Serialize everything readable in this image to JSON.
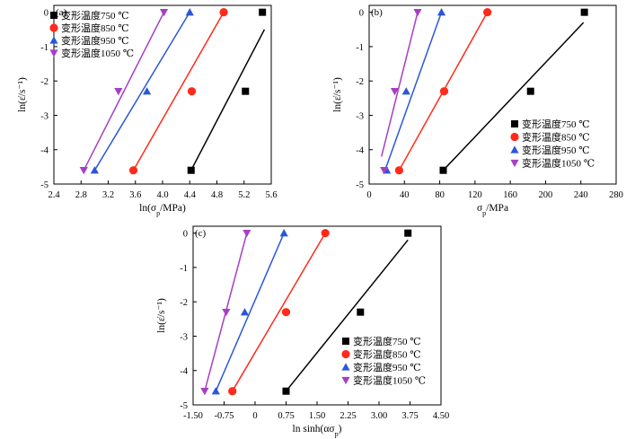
{
  "colors": {
    "750": "#000000",
    "850": "#ff2a1a",
    "950": "#2b57d8",
    "1050": "#a63fc4"
  },
  "legend_labels": [
    "变形温度750 ℃",
    "变形温度850 ℃",
    "变形温度950 ℃",
    "变形温度1050 ℃"
  ],
  "chart_data": [
    {
      "type": "scatter",
      "panel_label": "(a)",
      "xlabel": "ln(σ_p/MPa)",
      "ylabel": "ln(ε̇/s⁻¹)",
      "xlim": [
        2.4,
        5.6
      ],
      "ylim": [
        -5,
        0.2
      ],
      "xticks": [
        "2.4",
        "2.8",
        "3.2",
        "3.6",
        "4.0",
        "4.4",
        "4.8",
        "5.2",
        "5.6"
      ],
      "yticks": [
        "0",
        "-1",
        "-2",
        "-3",
        "-4",
        "-5"
      ],
      "legend_placement": "top-left",
      "series": [
        {
          "name": "变形温度750 ℃",
          "marker": "square",
          "color": "#000000",
          "points": [
            [
              4.42,
              -4.6
            ],
            [
              5.22,
              -2.3
            ],
            [
              5.47,
              0.0
            ]
          ],
          "fit": [
            [
              4.42,
              -4.6
            ],
            [
              5.5,
              -0.5
            ]
          ]
        },
        {
          "name": "变形温度850 ℃",
          "marker": "circle",
          "color": "#ff2a1a",
          "points": [
            [
              3.57,
              -4.6
            ],
            [
              4.43,
              -2.3
            ],
            [
              4.9,
              0.0
            ]
          ],
          "fit": [
            [
              3.57,
              -4.6
            ],
            [
              4.9,
              0.0
            ]
          ]
        },
        {
          "name": "变形温度950 ℃",
          "marker": "triangle-up",
          "color": "#2b57d8",
          "points": [
            [
              3.0,
              -4.6
            ],
            [
              3.77,
              -2.3
            ],
            [
              4.4,
              0.0
            ]
          ],
          "fit": [
            [
              3.0,
              -4.6
            ],
            [
              4.4,
              0.0
            ]
          ]
        },
        {
          "name": "变形温度1050 ℃",
          "marker": "triangle-down",
          "color": "#a63fc4",
          "points": [
            [
              2.84,
              -4.6
            ],
            [
              3.35,
              -2.3
            ],
            [
              4.02,
              0.0
            ]
          ],
          "fit": [
            [
              2.84,
              -4.6
            ],
            [
              4.02,
              0.0
            ]
          ]
        }
      ]
    },
    {
      "type": "scatter",
      "panel_label": "(b)",
      "xlabel": "σ_p/MPa",
      "ylabel": "ln(ε̇/s⁻¹)",
      "xlim": [
        0,
        280
      ],
      "ylim": [
        -5,
        0.2
      ],
      "xticks": [
        "0",
        "40",
        "80",
        "120",
        "160",
        "200",
        "240",
        "280"
      ],
      "yticks": [
        "0",
        "-1",
        "-2",
        "-3",
        "-4",
        "-5"
      ],
      "legend_placement": "bottom-right",
      "series": [
        {
          "name": "变形温度750 ℃",
          "marker": "square",
          "color": "#000000",
          "points": [
            [
              84,
              -4.6
            ],
            [
              183,
              -2.3
            ],
            [
              244,
              0.0
            ]
          ],
          "fit": [
            [
              84,
              -4.6
            ],
            [
              243,
              -0.3
            ]
          ]
        },
        {
          "name": "变形温度850 ℃",
          "marker": "circle",
          "color": "#ff2a1a",
          "points": [
            [
              34,
              -4.6
            ],
            [
              85,
              -2.3
            ],
            [
              134,
              0.0
            ]
          ],
          "fit": [
            [
              34,
              -4.6
            ],
            [
              134,
              0.0
            ]
          ]
        },
        {
          "name": "变形温度950 ℃",
          "marker": "triangle-up",
          "color": "#2b57d8",
          "points": [
            [
              20,
              -4.6
            ],
            [
              42,
              -2.3
            ],
            [
              82,
              0.0
            ]
          ],
          "fit": [
            [
              18,
              -4.6
            ],
            [
              82,
              0.0
            ]
          ]
        },
        {
          "name": "变形温度1050 ℃",
          "marker": "triangle-down",
          "color": "#a63fc4",
          "points": [
            [
              17,
              -4.6
            ],
            [
              29,
              -2.3
            ],
            [
              55,
              0.0
            ]
          ],
          "fit": [
            [
              14,
              -4.2
            ],
            [
              55,
              0.0
            ]
          ]
        }
      ]
    },
    {
      "type": "scatter",
      "panel_label": "(c)",
      "xlabel": "ln sinh(ασ_p)",
      "ylabel": "ln(ε̇/s⁻¹)",
      "xlim": [
        -1.5,
        4.5
      ],
      "ylim": [
        -5,
        0.2
      ],
      "xticks": [
        "-1.50",
        "-0.75",
        "0",
        "0.75",
        "1.50",
        "2.25",
        "3.00",
        "3.75",
        "4.50"
      ],
      "yticks": [
        "0",
        "-1",
        "-2",
        "-3",
        "-4",
        "-5"
      ],
      "legend_placement": "bottom-right",
      "series": [
        {
          "name": "变形温度750 ℃",
          "marker": "square",
          "color": "#000000",
          "points": [
            [
              0.75,
              -4.6
            ],
            [
              2.55,
              -2.3
            ],
            [
              3.7,
              0.0
            ]
          ],
          "fit": [
            [
              0.75,
              -4.6
            ],
            [
              3.7,
              -0.2
            ]
          ]
        },
        {
          "name": "变形温度850 ℃",
          "marker": "circle",
          "color": "#ff2a1a",
          "points": [
            [
              -0.55,
              -4.6
            ],
            [
              0.75,
              -2.3
            ],
            [
              1.7,
              0.0
            ]
          ],
          "fit": [
            [
              -0.55,
              -4.6
            ],
            [
              1.7,
              0.0
            ]
          ]
        },
        {
          "name": "变形温度950 ℃",
          "marker": "triangle-up",
          "color": "#2b57d8",
          "points": [
            [
              -0.95,
              -4.6
            ],
            [
              -0.25,
              -2.3
            ],
            [
              0.7,
              0.0
            ]
          ],
          "fit": [
            [
              -0.95,
              -4.6
            ],
            [
              0.7,
              0.0
            ]
          ]
        },
        {
          "name": "变形温度1050 ℃",
          "marker": "triangle-down",
          "color": "#a63fc4",
          "points": [
            [
              -1.22,
              -4.6
            ],
            [
              -0.7,
              -2.3
            ],
            [
              -0.2,
              0.0
            ]
          ],
          "fit": [
            [
              -1.22,
              -4.6
            ],
            [
              -0.2,
              0.0
            ]
          ]
        }
      ]
    }
  ]
}
